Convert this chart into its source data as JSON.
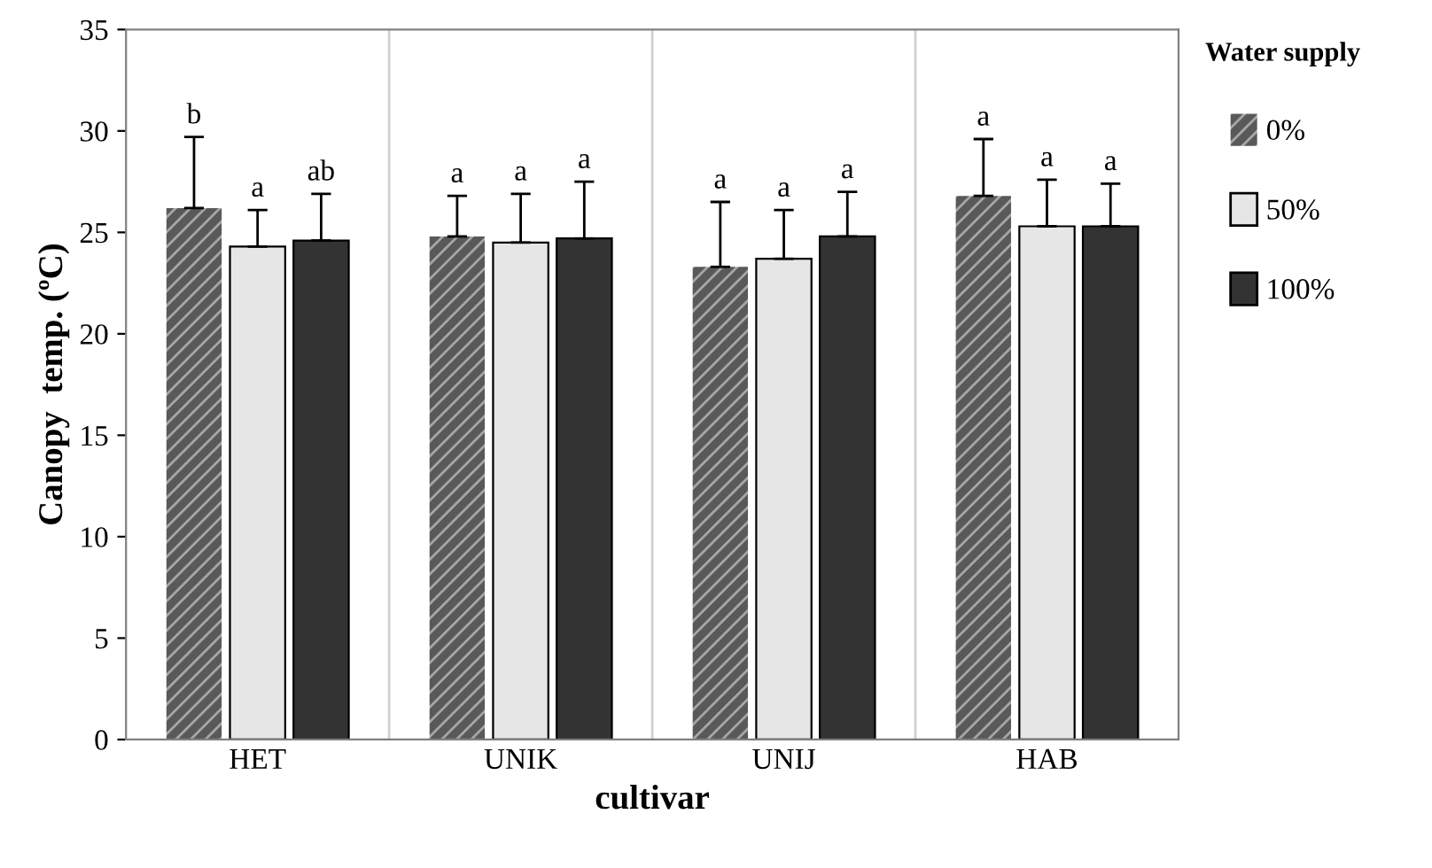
{
  "chart_data": {
    "type": "bar",
    "xlabel": "cultivar",
    "ylabel": "Canopy  temp. (ºC)",
    "legend_title": "Water supply",
    "legend": "right",
    "grid": "x",
    "categories": [
      "HET",
      "UNIK",
      "UNIJ",
      "HAB"
    ],
    "ylim": [
      0,
      35
    ],
    "yticks": [
      0,
      5,
      10,
      15,
      20,
      25,
      30,
      35
    ],
    "series": [
      {
        "name": "0%",
        "color": "#595959",
        "values": [
          26.2,
          24.8,
          23.3,
          26.8
        ],
        "errors": [
          3.5,
          2.0,
          3.2,
          2.8
        ],
        "value_labels": [
          "b",
          "a",
          "a",
          "a"
        ]
      },
      {
        "name": "50%",
        "color": "#e6e6e6",
        "values": [
          24.3,
          24.5,
          23.7,
          25.3
        ],
        "errors": [
          1.8,
          2.4,
          2.4,
          2.3
        ],
        "value_labels": [
          "a",
          "a",
          "a",
          "a"
        ]
      },
      {
        "name": "100%",
        "color": "#333333",
        "values": [
          24.6,
          24.7,
          24.8,
          25.3
        ],
        "errors": [
          2.3,
          2.8,
          2.2,
          2.1
        ],
        "value_labels": [
          "ab",
          "a",
          "a",
          "a"
        ]
      }
    ]
  }
}
